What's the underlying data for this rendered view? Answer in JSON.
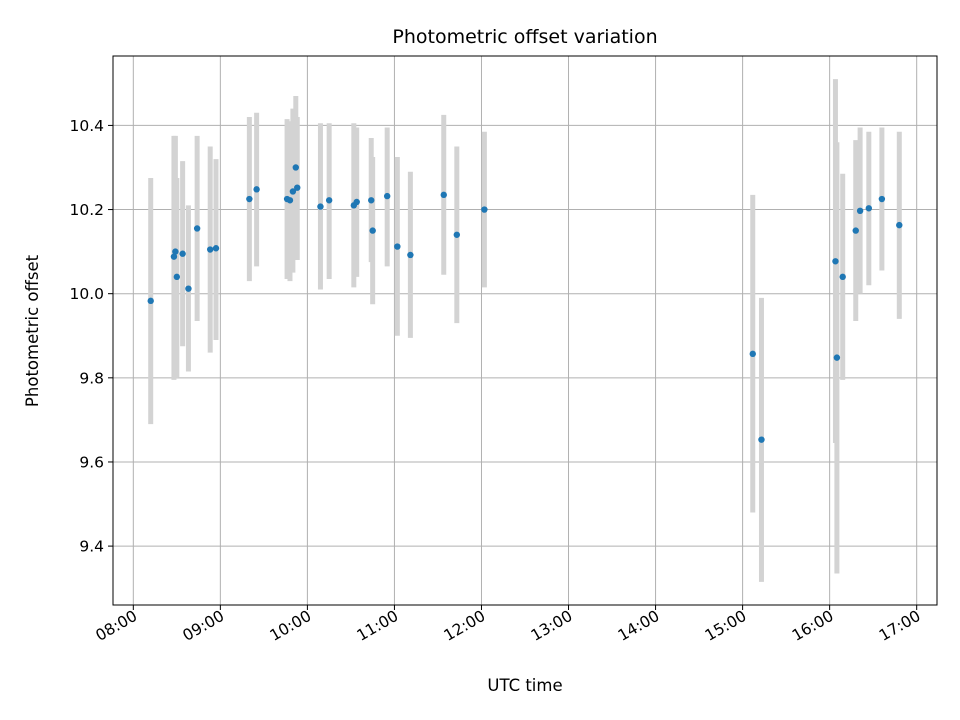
{
  "chart_data": {
    "type": "scatter",
    "title": "Photometric offset variation",
    "xlabel": "UTC time",
    "ylabel": "Photometric offset",
    "x_ticks": [
      "08:00",
      "09:00",
      "10:00",
      "11:00",
      "12:00",
      "13:00",
      "14:00",
      "15:00",
      "16:00",
      "17:00"
    ],
    "y_ticks": [
      "9.4",
      "9.6",
      "9.8",
      "10.0",
      "10.2",
      "10.4"
    ],
    "xlim": [
      "07:46",
      "17:14"
    ],
    "ylim": [
      9.26,
      10.565
    ],
    "grid": true,
    "colors": {
      "point": "#1f77b4",
      "errorbar": "#d3d3d3",
      "grid": "#b0b0b0"
    },
    "points": [
      {
        "t": "08:12",
        "y": 9.983,
        "lo": 9.69,
        "hi": 10.275
      },
      {
        "t": "08:28",
        "y": 10.088,
        "lo": 9.795,
        "hi": 10.375
      },
      {
        "t": "08:29",
        "y": 10.1,
        "lo": 9.8,
        "hi": 10.375
      },
      {
        "t": "08:30",
        "y": 10.04,
        "lo": 9.8,
        "hi": 10.275
      },
      {
        "t": "08:34",
        "y": 10.095,
        "lo": 9.875,
        "hi": 10.315
      },
      {
        "t": "08:38",
        "y": 10.012,
        "lo": 9.815,
        "hi": 10.21
      },
      {
        "t": "08:44",
        "y": 10.155,
        "lo": 9.935,
        "hi": 10.375
      },
      {
        "t": "08:53",
        "y": 10.105,
        "lo": 9.86,
        "hi": 10.35
      },
      {
        "t": "08:57",
        "y": 10.108,
        "lo": 9.89,
        "hi": 10.32
      },
      {
        "t": "09:20",
        "y": 10.225,
        "lo": 10.03,
        "hi": 10.42
      },
      {
        "t": "09:25",
        "y": 10.248,
        "lo": 10.065,
        "hi": 10.43
      },
      {
        "t": "09:46",
        "y": 10.225,
        "lo": 10.035,
        "hi": 10.415
      },
      {
        "t": "09:48",
        "y": 10.222,
        "lo": 10.03,
        "hi": 10.41
      },
      {
        "t": "09:50",
        "y": 10.243,
        "lo": 10.05,
        "hi": 10.44
      },
      {
        "t": "09:52",
        "y": 10.3,
        "lo": 10.13,
        "hi": 10.47
      },
      {
        "t": "09:53",
        "y": 10.252,
        "lo": 10.08,
        "hi": 10.42
      },
      {
        "t": "10:09",
        "y": 10.207,
        "lo": 10.01,
        "hi": 10.405
      },
      {
        "t": "10:15",
        "y": 10.222,
        "lo": 10.035,
        "hi": 10.405
      },
      {
        "t": "10:32",
        "y": 10.21,
        "lo": 10.015,
        "hi": 10.405
      },
      {
        "t": "10:34",
        "y": 10.218,
        "lo": 10.04,
        "hi": 10.395
      },
      {
        "t": "10:44",
        "y": 10.222,
        "lo": 10.075,
        "hi": 10.37
      },
      {
        "t": "10:45",
        "y": 10.15,
        "lo": 9.975,
        "hi": 10.325
      },
      {
        "t": "10:55",
        "y": 10.232,
        "lo": 10.065,
        "hi": 10.395
      },
      {
        "t": "11:02",
        "y": 10.112,
        "lo": 9.9,
        "hi": 10.325
      },
      {
        "t": "11:11",
        "y": 10.092,
        "lo": 9.895,
        "hi": 10.29
      },
      {
        "t": "11:34",
        "y": 10.235,
        "lo": 10.045,
        "hi": 10.425
      },
      {
        "t": "11:43",
        "y": 10.14,
        "lo": 9.93,
        "hi": 10.35
      },
      {
        "t": "12:02",
        "y": 10.2,
        "lo": 10.015,
        "hi": 10.385
      },
      {
        "t": "15:07",
        "y": 9.857,
        "lo": 9.48,
        "hi": 10.235
      },
      {
        "t": "15:13",
        "y": 9.653,
        "lo": 9.315,
        "hi": 9.99
      },
      {
        "t": "16:04",
        "y": 10.077,
        "lo": 9.645,
        "hi": 10.51
      },
      {
        "t": "16:05",
        "y": 9.848,
        "lo": 9.335,
        "hi": 10.36
      },
      {
        "t": "16:09",
        "y": 10.04,
        "lo": 9.795,
        "hi": 10.285
      },
      {
        "t": "16:18",
        "y": 10.15,
        "lo": 9.935,
        "hi": 10.365
      },
      {
        "t": "16:21",
        "y": 10.197,
        "lo": 10.0,
        "hi": 10.395
      },
      {
        "t": "16:27",
        "y": 10.203,
        "lo": 10.02,
        "hi": 10.385
      },
      {
        "t": "16:36",
        "y": 10.225,
        "lo": 10.055,
        "hi": 10.395
      },
      {
        "t": "16:48",
        "y": 10.163,
        "lo": 9.94,
        "hi": 10.385
      }
    ]
  }
}
